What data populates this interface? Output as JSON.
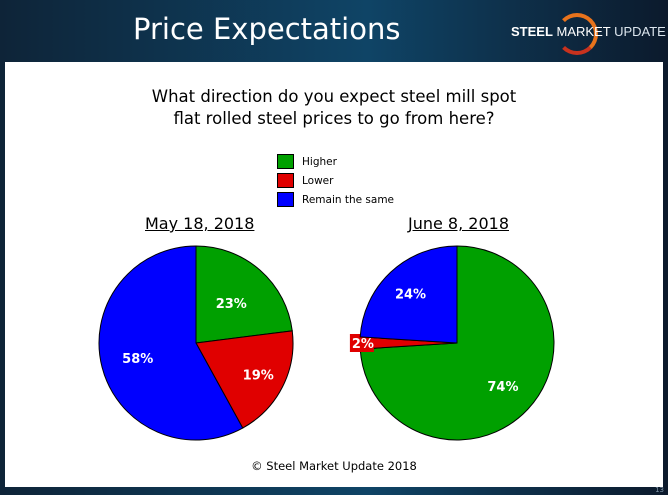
{
  "header": {
    "title": "Price Expectations",
    "logo_text": "STEEL MARKET UPDATE"
  },
  "chart_data": [
    {
      "type": "pie",
      "title": "May 18, 2018",
      "categories": [
        "Higher",
        "Lower",
        "Remain the same"
      ],
      "values": [
        23,
        19,
        58
      ],
      "labels": [
        "23%",
        "19%",
        "58%"
      ]
    },
    {
      "type": "pie",
      "title": "June 8, 2018",
      "categories": [
        "Higher",
        "Lower",
        "Remain the same"
      ],
      "values": [
        74,
        2,
        24
      ],
      "labels": [
        "74%",
        "2%",
        "24%"
      ]
    }
  ],
  "question": [
    "What direction do you expect steel mill spot",
    "flat rolled steel prices to go from here?"
  ],
  "legend": [
    {
      "label": "Higher",
      "color": "#00a000"
    },
    {
      "label": "Lower",
      "color": "#e00000"
    },
    {
      "label": "Remain the same",
      "color": "#0000ff"
    }
  ],
  "footer": "© Steel Market Update 2018",
  "page_number": "13"
}
